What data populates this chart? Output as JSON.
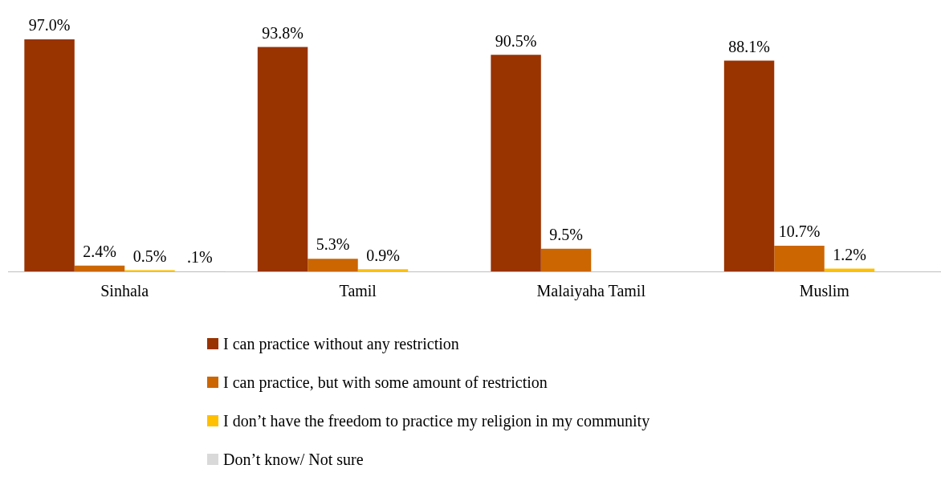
{
  "chart_data": {
    "type": "bar",
    "categories": [
      "Sinhala",
      "Tamil",
      "Malaiyaha Tamil",
      "Muslim"
    ],
    "series": [
      {
        "name": "I can practice without any restriction",
        "color": "#993300",
        "values": [
          97.0,
          93.8,
          90.5,
          88.1
        ],
        "value_labels": [
          "97.0%",
          "93.8%",
          "90.5%",
          "88.1%"
        ]
      },
      {
        "name": "I can practice, but with some amount of restriction",
        "color": "#cc6600",
        "values": [
          2.4,
          5.3,
          9.5,
          10.7
        ],
        "value_labels": [
          "2.4%",
          "5.3%",
          "9.5%",
          "10.7%"
        ]
      },
      {
        "name": "I don’t have the freedom to practice my religion in my community",
        "color": "#ffc000",
        "values": [
          0.5,
          0.9,
          null,
          1.2
        ],
        "value_labels": [
          "0.5%",
          "0.9%",
          null,
          "1.2%"
        ]
      },
      {
        "name": "Don’t know/ Not sure",
        "color": "#d9d9d9",
        "values": [
          0.1,
          null,
          null,
          null
        ],
        "value_labels": [
          ".1%",
          null,
          null,
          null
        ]
      }
    ],
    "legend": "bottom",
    "grid": false
  }
}
